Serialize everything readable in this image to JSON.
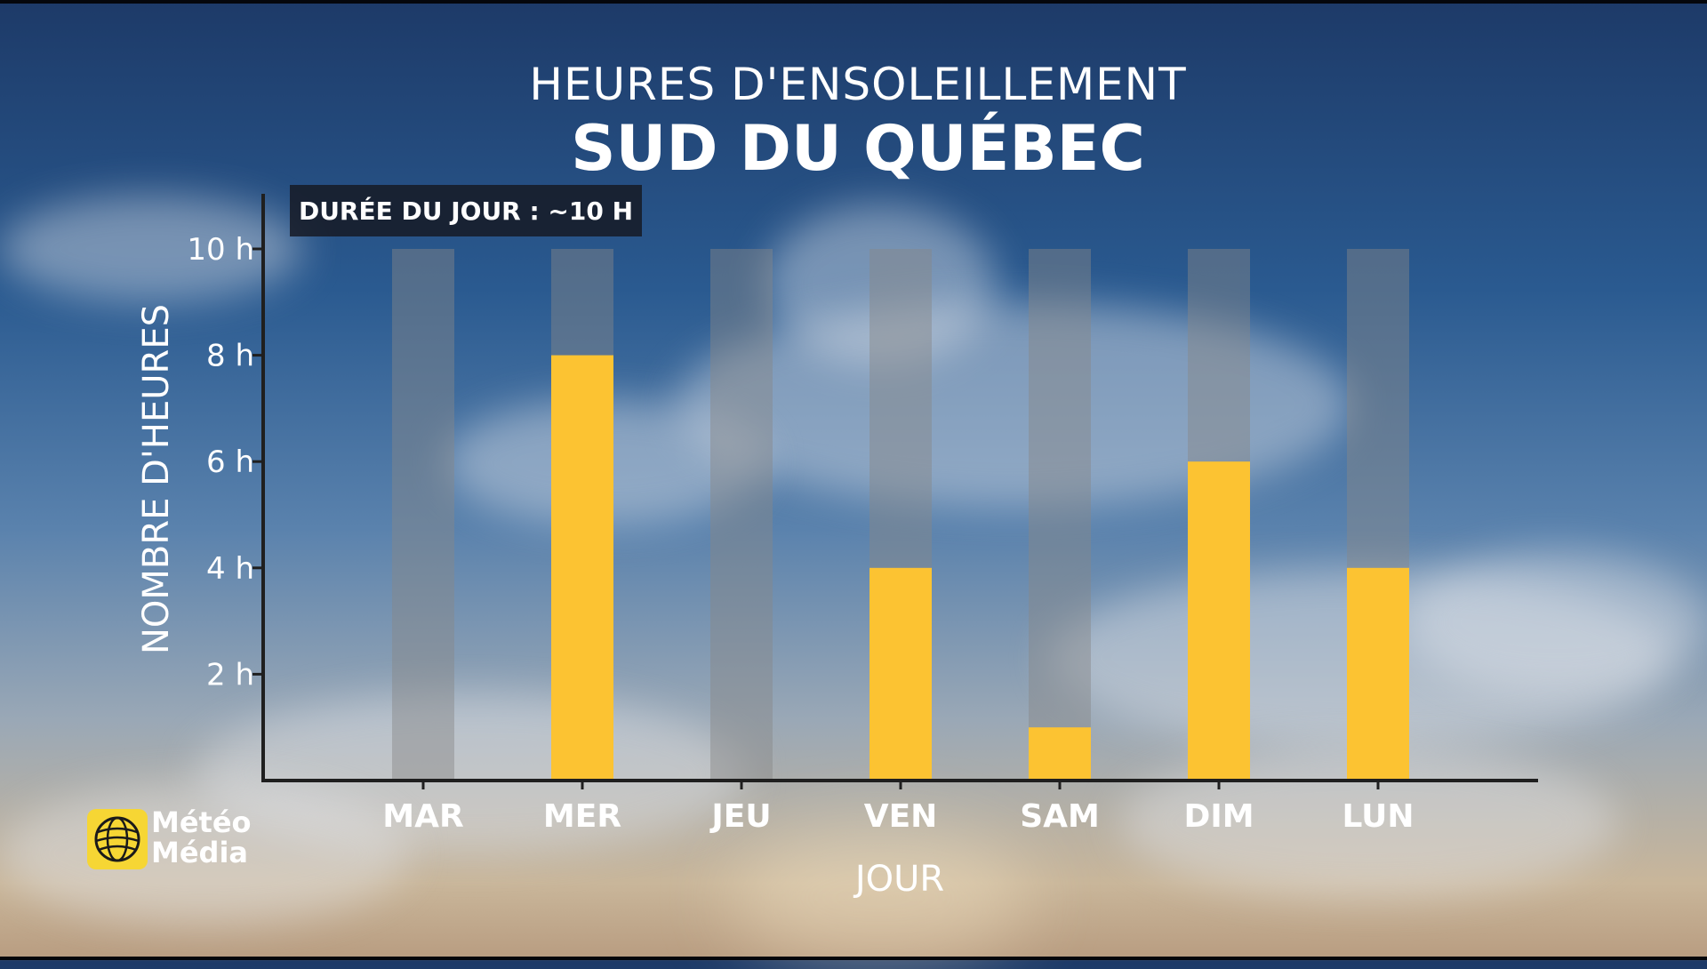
{
  "header": {
    "title": "HEURES D'ENSOLEILLEMENT",
    "subtitle": "SUD DU QUÉBEC"
  },
  "badge": {
    "day_length": "DURÉE DU JOUR : ~10 H"
  },
  "logo": {
    "line1": "Météo",
    "line2": "Média"
  },
  "colors": {
    "bar": "#fcc332",
    "background_bar": "rgba(135,135,135,0.45)",
    "axis": "#1f1f1f",
    "text": "#ffffff",
    "logo": "#f6d634"
  },
  "chart_data": {
    "type": "bar",
    "title": "HEURES D'ENSOLEILLEMENT",
    "subtitle": "SUD DU QUÉBEC",
    "xlabel": "JOUR",
    "ylabel": "NOMBRE D'HEURES",
    "categories": [
      "MAR",
      "MER",
      "JEU",
      "VEN",
      "SAM",
      "DIM",
      "LUN"
    ],
    "values": [
      0,
      8,
      0,
      4,
      1,
      6,
      4
    ],
    "day_length_hours": 10,
    "ylim": [
      0,
      10
    ],
    "yticks": [
      {
        "value": 2,
        "label": "2 h"
      },
      {
        "value": 4,
        "label": "4 h"
      },
      {
        "value": 6,
        "label": "6 h"
      },
      {
        "value": 8,
        "label": "8 h"
      },
      {
        "value": 10,
        "label": "10 h"
      }
    ],
    "grid": false,
    "legend": "none"
  }
}
